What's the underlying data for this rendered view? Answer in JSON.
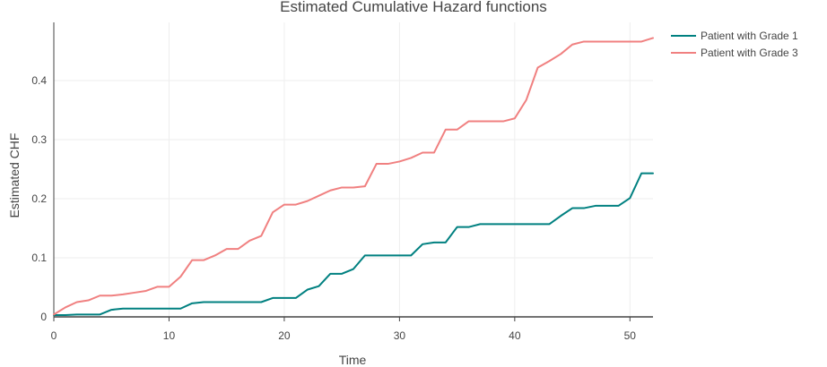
{
  "chart_data": {
    "type": "line",
    "title": "Estimated Cumulative Hazard functions",
    "xlabel": "Time",
    "ylabel": "Estimated CHF",
    "xlim": [
      0,
      52
    ],
    "ylim": [
      -0.01,
      0.5
    ],
    "x_ticks": [
      0,
      10,
      20,
      30,
      40,
      50
    ],
    "y_ticks": [
      0,
      0.1,
      0.2,
      0.3,
      0.4
    ],
    "y_tick_labels": [
      "0",
      "0.1",
      "0.2",
      "0.3",
      "0.4"
    ],
    "grid": true,
    "legend_position": "top-right",
    "series": [
      {
        "name": "Patient with Grade 1",
        "color": "#008080",
        "points": [
          [
            0,
            0.003
          ],
          [
            1,
            0.003
          ],
          [
            2,
            0.004
          ],
          [
            3,
            0.004
          ],
          [
            4,
            0.004
          ],
          [
            5,
            0.012
          ],
          [
            6,
            0.014
          ],
          [
            7,
            0.014
          ],
          [
            8,
            0.014
          ],
          [
            9,
            0.014
          ],
          [
            10,
            0.014
          ],
          [
            11,
            0.014
          ],
          [
            12,
            0.023
          ],
          [
            13,
            0.025
          ],
          [
            14,
            0.025
          ],
          [
            15,
            0.025
          ],
          [
            16,
            0.025
          ],
          [
            17,
            0.025
          ],
          [
            18,
            0.025
          ],
          [
            19,
            0.032
          ],
          [
            20,
            0.032
          ],
          [
            21,
            0.032
          ],
          [
            22,
            0.046
          ],
          [
            23,
            0.052
          ],
          [
            24,
            0.073
          ],
          [
            25,
            0.073
          ],
          [
            26,
            0.081
          ],
          [
            27,
            0.104
          ],
          [
            28,
            0.104
          ],
          [
            29,
            0.104
          ],
          [
            30,
            0.104
          ],
          [
            31,
            0.104
          ],
          [
            32,
            0.123
          ],
          [
            33,
            0.126
          ],
          [
            34,
            0.126
          ],
          [
            35,
            0.152
          ],
          [
            36,
            0.152
          ],
          [
            37,
            0.157
          ],
          [
            38,
            0.157
          ],
          [
            39,
            0.157
          ],
          [
            40,
            0.157
          ],
          [
            41,
            0.157
          ],
          [
            42,
            0.157
          ],
          [
            43,
            0.157
          ],
          [
            44,
            0.171
          ],
          [
            45,
            0.184
          ],
          [
            46,
            0.184
          ],
          [
            47,
            0.188
          ],
          [
            48,
            0.188
          ],
          [
            49,
            0.188
          ],
          [
            50,
            0.201
          ],
          [
            51,
            0.243
          ],
          [
            52,
            0.243
          ]
        ]
      },
      {
        "name": "Patient with Grade 3",
        "color": "#f08080",
        "points": [
          [
            0,
            0.004
          ],
          [
            1,
            0.016
          ],
          [
            2,
            0.025
          ],
          [
            3,
            0.028
          ],
          [
            4,
            0.036
          ],
          [
            5,
            0.036
          ],
          [
            6,
            0.038
          ],
          [
            7,
            0.041
          ],
          [
            8,
            0.044
          ],
          [
            9,
            0.051
          ],
          [
            10,
            0.051
          ],
          [
            11,
            0.068
          ],
          [
            12,
            0.096
          ],
          [
            13,
            0.096
          ],
          [
            14,
            0.104
          ],
          [
            15,
            0.115
          ],
          [
            16,
            0.115
          ],
          [
            17,
            0.129
          ],
          [
            18,
            0.137
          ],
          [
            19,
            0.177
          ],
          [
            20,
            0.19
          ],
          [
            21,
            0.19
          ],
          [
            22,
            0.196
          ],
          [
            23,
            0.205
          ],
          [
            24,
            0.214
          ],
          [
            25,
            0.219
          ],
          [
            26,
            0.219
          ],
          [
            27,
            0.221
          ],
          [
            28,
            0.259
          ],
          [
            29,
            0.259
          ],
          [
            30,
            0.263
          ],
          [
            31,
            0.269
          ],
          [
            32,
            0.278
          ],
          [
            33,
            0.278
          ],
          [
            34,
            0.317
          ],
          [
            35,
            0.317
          ],
          [
            36,
            0.331
          ],
          [
            37,
            0.331
          ],
          [
            38,
            0.331
          ],
          [
            39,
            0.331
          ],
          [
            40,
            0.336
          ],
          [
            41,
            0.367
          ],
          [
            42,
            0.422
          ],
          [
            43,
            0.433
          ],
          [
            44,
            0.445
          ],
          [
            45,
            0.461
          ],
          [
            46,
            0.466
          ],
          [
            47,
            0.466
          ],
          [
            48,
            0.466
          ],
          [
            49,
            0.466
          ],
          [
            50,
            0.466
          ],
          [
            51,
            0.466
          ],
          [
            52,
            0.472
          ]
        ]
      }
    ]
  }
}
